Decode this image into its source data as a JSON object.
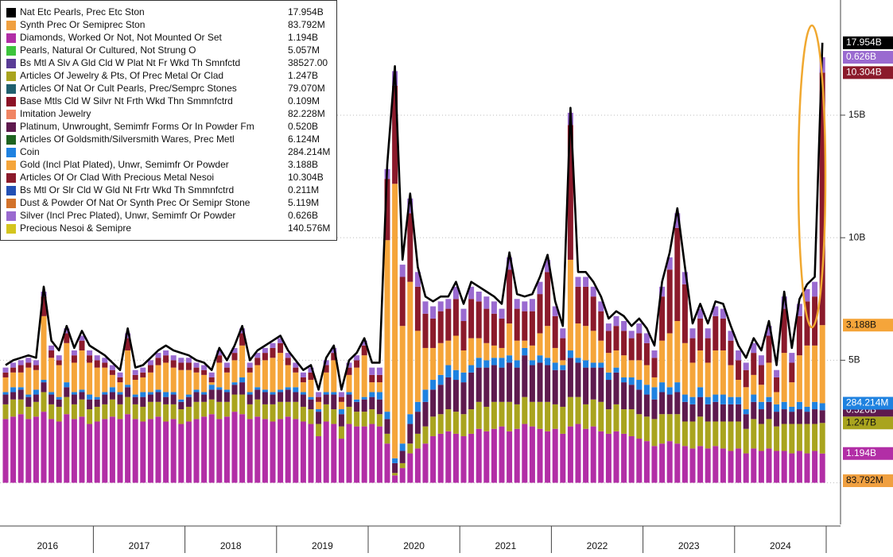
{
  "chart_data": {
    "type": "stacked_bar",
    "years": [
      "2016",
      "2017",
      "2018",
      "2019",
      "2020",
      "2021",
      "2022",
      "2023",
      "2024"
    ],
    "ylim": [
      -1.7,
      19.7
    ],
    "yticks": [
      {
        "value": 5,
        "label": "5B"
      },
      {
        "value": 10,
        "label": "10B"
      },
      {
        "value": 15,
        "label": "15B"
      }
    ],
    "grid": true,
    "legend": "top-left",
    "series": [
      {
        "name": "Nat Etc Pearls, Prec Etc Ston",
        "color": "#000000",
        "style": "line",
        "axis_tag": true,
        "value_label": "17.954B",
        "values": [
          4.8,
          5.0,
          5.1,
          5.2,
          5.1,
          8.0,
          5.8,
          5.4,
          6.4,
          5.5,
          6.2,
          5.6,
          5.4,
          5.2,
          4.9,
          4.6,
          6.3,
          4.7,
          4.8,
          5.1,
          5.4,
          5.6,
          5.4,
          5.3,
          5.2,
          5.0,
          4.9,
          4.6,
          5.5,
          5.0,
          5.6,
          6.4,
          5.0,
          5.4,
          5.6,
          5.8,
          6.0,
          5.4,
          5.0,
          4.6,
          4.8,
          3.8,
          5.1,
          5.6,
          3.8,
          5.0,
          5.3,
          5.9,
          4.9,
          4.9,
          13.0,
          17.0,
          9.1,
          11.8,
          8.8,
          7.6,
          7.4,
          7.6,
          7.6,
          8.2,
          7.3,
          8.2,
          8.0,
          7.8,
          7.6,
          7.3,
          9.4,
          7.7,
          7.6,
          7.7,
          8.4,
          9.3,
          7.4,
          6.4,
          15.3,
          8.6,
          8.6,
          8.2,
          7.6,
          6.7,
          7.0,
          6.8,
          6.4,
          6.7,
          6.3,
          5.6,
          8.2,
          9.4,
          11.2,
          8.8,
          6.5,
          7.3,
          6.5,
          7.4,
          7.3,
          6.4,
          5.6,
          5.1,
          5.9,
          5.4,
          6.6,
          4.8,
          7.8,
          5.5,
          7.5,
          8.1,
          8.4,
          17.954
        ]
      },
      {
        "name": "Synth Prec Or Semiprec Ston",
        "color": "#f0a040",
        "axis_tag": true,
        "value_label": "83.792M",
        "last": 0.083792
      },
      {
        "name": "Diamonds, Worked Or Not, Not Mounted Or Set",
        "color": "#b22ea6",
        "axis_tag": true,
        "value_label": "1.194B",
        "values": [
          2.6,
          2.7,
          2.8,
          2.6,
          2.7,
          2.9,
          2.6,
          2.5,
          2.8,
          2.6,
          2.7,
          2.4,
          2.5,
          2.6,
          2.7,
          2.6,
          2.8,
          2.6,
          2.5,
          2.6,
          2.7,
          2.5,
          2.6,
          2.4,
          2.5,
          2.6,
          2.7,
          2.8,
          2.6,
          2.7,
          2.9,
          2.8,
          2.6,
          2.7,
          2.6,
          2.5,
          2.6,
          2.7,
          2.6,
          2.5,
          2.4,
          1.9,
          2.5,
          2.4,
          1.8,
          2.4,
          2.3,
          2.3,
          2.4,
          2.3,
          1.6,
          0.3,
          0.6,
          1.2,
          1.4,
          1.6,
          1.9,
          2.0,
          2.1,
          2.0,
          1.9,
          2.0,
          2.2,
          2.1,
          2.2,
          2.3,
          2.1,
          2.2,
          2.4,
          2.3,
          2.2,
          2.1,
          2.2,
          2.0,
          2.3,
          2.4,
          2.2,
          2.3,
          2.1,
          2.0,
          2.1,
          2.0,
          1.9,
          1.8,
          1.7,
          1.5,
          1.6,
          1.7,
          1.6,
          1.5,
          1.4,
          1.5,
          1.4,
          1.5,
          1.4,
          1.3,
          1.4,
          1.2,
          1.4,
          1.3,
          1.4,
          1.3,
          1.3,
          1.2,
          1.3,
          1.2,
          1.3,
          1.194
        ]
      },
      {
        "name": "Pearls, Natural Or Cultured, Not Strung O",
        "color": "#3cc43c",
        "value_label": "5.057M",
        "last": 0.005057
      },
      {
        "name": "Bs Mtl A Slv A Gld Cld W Plat Nt Fr Wkd Th Smnfctd",
        "color": "#5a3c96",
        "value_label": "38527.00",
        "last": 38527
      },
      {
        "name": "Articles Of Jewelry & Pts, Of Prec Metal Or Clad",
        "color": "#a9a41e",
        "axis_tag": true,
        "value_label": "1.247B",
        "values": [
          0.6,
          0.7,
          0.6,
          0.5,
          0.6,
          0.8,
          0.6,
          0.6,
          0.7,
          0.6,
          0.7,
          0.6,
          0.6,
          0.6,
          0.7,
          0.6,
          0.7,
          0.6,
          0.6,
          0.7,
          0.6,
          0.7,
          0.6,
          0.6,
          0.6,
          0.7,
          0.6,
          0.6,
          0.7,
          0.6,
          0.7,
          0.8,
          0.6,
          0.7,
          0.6,
          0.7,
          0.7,
          0.6,
          0.7,
          0.6,
          0.6,
          0.5,
          0.7,
          0.6,
          0.5,
          0.7,
          0.6,
          0.6,
          0.6,
          0.5,
          0.4,
          0.1,
          0.2,
          0.4,
          0.6,
          0.7,
          0.8,
          0.8,
          0.9,
          0.9,
          0.9,
          1.0,
          1.1,
          1.0,
          1.1,
          1.0,
          1.2,
          1.0,
          1.1,
          1.0,
          1.1,
          1.2,
          1.0,
          1.1,
          1.2,
          1.1,
          1.0,
          1.1,
          1.2,
          1.0,
          1.1,
          1.0,
          1.1,
          1.0,
          1.0,
          1.1,
          1.2,
          1.1,
          1.2,
          1.0,
          1.1,
          1.2,
          1.1,
          1.0,
          1.1,
          1.2,
          1.1,
          1.0,
          1.2,
          1.1,
          1.2,
          1.0,
          1.1,
          1.2,
          1.1,
          1.2,
          1.1,
          1.247
        ]
      },
      {
        "name": "Articles Of Nat Or Cult Pearls, Prec/Semprc Stones",
        "color": "#1f5f6e",
        "value_label": "79.070M",
        "last": 0.07907
      },
      {
        "name": "Base Mtls Cld W Silvr Nt Frth Wkd Thn Smmnfctrd",
        "color": "#8c1226",
        "value_label": "0.109M",
        "last": 0.000109
      },
      {
        "name": "Imitation Jewelry",
        "color": "#f08462",
        "value_label": "82.228M",
        "last": 0.082228
      },
      {
        "name": "Platinum, Unwrought, Semimfr Forms Or In Powder Fm",
        "color": "#5e1a4e",
        "axis_tag": true,
        "value_label": "0.520B",
        "values": [
          0.4,
          0.3,
          0.4,
          0.4,
          0.3,
          0.4,
          0.4,
          0.3,
          0.4,
          0.4,
          0.3,
          0.4,
          0.3,
          0.4,
          0.3,
          0.4,
          0.4,
          0.3,
          0.4,
          0.3,
          0.4,
          0.3,
          0.4,
          0.3,
          0.4,
          0.4,
          0.3,
          0.4,
          0.5,
          0.4,
          0.4,
          0.5,
          0.4,
          0.4,
          0.5,
          0.4,
          0.4,
          0.5,
          0.4,
          0.5,
          0.4,
          0.5,
          0.4,
          0.6,
          0.5,
          0.5,
          0.4,
          0.5,
          0.5,
          0.6,
          0.6,
          0.4,
          0.5,
          0.8,
          0.9,
          1.0,
          1.1,
          1.2,
          1.3,
          1.3,
          1.3,
          1.5,
          1.4,
          1.6,
          1.5,
          1.4,
          1.6,
          1.5,
          1.7,
          1.5,
          1.6,
          1.5,
          1.4,
          1.5,
          1.6,
          1.4,
          1.5,
          1.3,
          1.4,
          1.2,
          1.3,
          1.1,
          1.0,
          1.0,
          0.9,
          0.8,
          0.9,
          0.8,
          0.9,
          0.8,
          0.7,
          0.8,
          0.7,
          0.8,
          0.7,
          0.7,
          0.7,
          0.6,
          0.7,
          0.6,
          0.7,
          0.6,
          0.6,
          0.5,
          0.6,
          0.5,
          0.6,
          0.52
        ]
      },
      {
        "name": "Articles Of Goldsmith/Silversmith Wares, Prec Metl",
        "color": "#1e6420",
        "value_label": "6.124M",
        "last": 0.006124
      },
      {
        "name": "Coin",
        "color": "#1f82e0",
        "axis_tag": true,
        "value_label": "284.214M",
        "values": [
          0.1,
          0.2,
          0.1,
          0.1,
          0.2,
          0.1,
          0.1,
          0.1,
          0.2,
          0.1,
          0.1,
          0.2,
          0.1,
          0.1,
          0.2,
          0.1,
          0.1,
          0.1,
          0.2,
          0.1,
          0.1,
          0.2,
          0.1,
          0.1,
          0.1,
          0.1,
          0.1,
          0.2,
          0.1,
          0.1,
          0.1,
          0.2,
          0.1,
          0.1,
          0.1,
          0.1,
          0.1,
          0.1,
          0.2,
          0.1,
          0.1,
          0.1,
          0.1,
          0.1,
          0.2,
          0.1,
          0.1,
          0.1,
          0.2,
          0.3,
          0.3,
          0.2,
          0.3,
          0.4,
          0.4,
          0.5,
          0.4,
          0.4,
          0.5,
          0.4,
          0.4,
          0.3,
          0.4,
          0.3,
          0.3,
          0.4,
          0.3,
          0.3,
          0.3,
          0.2,
          0.3,
          0.3,
          0.3,
          0.2,
          0.3,
          0.2,
          0.3,
          0.2,
          0.2,
          0.3,
          0.2,
          0.2,
          0.3,
          0.4,
          0.4,
          0.5,
          0.4,
          0.3,
          0.4,
          0.3,
          0.3,
          0.4,
          0.3,
          0.3,
          0.4,
          0.3,
          0.3,
          0.2,
          0.3,
          0.3,
          0.2,
          0.3,
          0.3,
          0.2,
          0.3,
          0.2,
          0.3,
          0.284214
        ]
      },
      {
        "name": "Gold (Incl Plat Plated), Unwr, Semimfr Or Powder",
        "color": "#f5a53a",
        "axis_tag": true,
        "value_label": "3.188B",
        "values": [
          0.6,
          0.6,
          0.6,
          1.1,
          0.8,
          2.6,
          1.4,
          1.3,
          1.6,
          1.2,
          1.6,
          1.3,
          1.2,
          1.0,
          0.5,
          0.4,
          1.4,
          0.6,
          0.6,
          0.8,
          1.0,
          1.2,
          1.0,
          1.2,
          1.0,
          0.7,
          0.7,
          0.1,
          1.0,
          0.7,
          0.9,
          1.3,
          0.8,
          0.9,
          1.2,
          1.4,
          1.5,
          0.9,
          0.6,
          0.4,
          0.7,
          0.3,
          0.8,
          1.3,
          0.3,
          0.7,
          1.3,
          1.7,
          0.4,
          0.4,
          7.0,
          11.2,
          4.8,
          5.4,
          2.9,
          1.7,
          1.3,
          1.3,
          1.0,
          1.4,
          0.9,
          1.1,
          0.8,
          0.7,
          0.5,
          0.4,
          1.3,
          0.8,
          0.3,
          0.6,
          0.9,
          1.3,
          0.6,
          0.2,
          3.7,
          1.4,
          1.4,
          1.3,
          0.9,
          0.8,
          0.7,
          0.9,
          0.7,
          0.8,
          0.8,
          0.4,
          1.7,
          2.2,
          2.5,
          2.1,
          1.4,
          1.5,
          1.4,
          1.8,
          1.8,
          1.3,
          0.7,
          0.9,
          0.8,
          0.7,
          1.4,
          0.5,
          2.0,
          1.0,
          1.9,
          2.5,
          2.3,
          3.188
        ]
      },
      {
        "name": "Articles Of Or Clad With Precious Metal Nesoi",
        "color": "#8b1a2b",
        "axis_tag": true,
        "value_label": "10.304B",
        "values": [
          0.2,
          0.2,
          0.3,
          0.2,
          0.2,
          0.8,
          0.3,
          0.2,
          0.4,
          0.3,
          0.4,
          0.3,
          0.3,
          0.2,
          0.2,
          0.2,
          0.5,
          0.2,
          0.2,
          0.3,
          0.3,
          0.3,
          0.3,
          0.3,
          0.3,
          0.2,
          0.2,
          0.2,
          0.3,
          0.2,
          0.3,
          0.5,
          0.2,
          0.3,
          0.3,
          0.4,
          0.4,
          0.3,
          0.2,
          0.2,
          0.3,
          0.2,
          0.3,
          0.3,
          0.2,
          0.3,
          0.3,
          0.4,
          0.3,
          0.3,
          2.5,
          4.0,
          2.0,
          2.8,
          1.8,
          1.4,
          1.2,
          1.3,
          1.3,
          1.5,
          1.2,
          1.6,
          1.5,
          1.4,
          1.3,
          1.2,
          2.2,
          1.3,
          1.2,
          1.4,
          1.6,
          2.2,
          1.3,
          0.9,
          5.5,
          1.5,
          1.6,
          1.4,
          1.2,
          0.9,
          1.0,
          1.0,
          0.9,
          1.1,
          0.9,
          0.8,
          1.8,
          2.6,
          3.8,
          2.4,
          1.0,
          1.3,
          1.0,
          1.4,
          1.3,
          1.0,
          0.8,
          0.7,
          0.9,
          0.8,
          1.1,
          0.6,
          1.8,
          0.8,
          1.6,
          1.8,
          2.0,
          10.304
        ]
      },
      {
        "name": "Bs Mtl Or Slr Cld W Gld Nt Frtr Wkd Th Smmnfctrd",
        "color": "#2350b4",
        "value_label": "0.211M",
        "last": 0.000211
      },
      {
        "name": "Dust & Powder Of Nat Or Synth Prec Or Semipr Stone",
        "color": "#d2722a",
        "value_label": "5.119M",
        "last": 0.005119
      },
      {
        "name": "Silver (Incl Prec Plated), Unwr, Semimfr Or Powder",
        "color": "#9a6ad0",
        "axis_tag": true,
        "value_label": "0.626B",
        "values": [
          0.2,
          0.2,
          0.2,
          0.2,
          0.2,
          0.2,
          0.2,
          0.2,
          0.2,
          0.2,
          0.2,
          0.2,
          0.2,
          0.2,
          0.2,
          0.2,
          0.2,
          0.2,
          0.2,
          0.2,
          0.2,
          0.2,
          0.2,
          0.2,
          0.2,
          0.2,
          0.2,
          0.2,
          0.2,
          0.2,
          0.2,
          0.2,
          0.2,
          0.2,
          0.2,
          0.2,
          0.2,
          0.2,
          0.2,
          0.2,
          0.2,
          0.2,
          0.2,
          0.2,
          0.2,
          0.2,
          0.2,
          0.2,
          0.3,
          0.3,
          0.4,
          0.6,
          0.5,
          0.6,
          0.6,
          0.5,
          0.5,
          0.4,
          0.4,
          0.5,
          0.5,
          0.5,
          0.4,
          0.5,
          0.5,
          0.4,
          0.5,
          0.4,
          0.4,
          0.5,
          0.5,
          0.5,
          0.4,
          0.4,
          0.5,
          0.4,
          0.4,
          0.4,
          0.4,
          0.3,
          0.4,
          0.4,
          0.3,
          0.4,
          0.4,
          0.3,
          0.4,
          0.5,
          0.6,
          0.5,
          0.4,
          0.4,
          0.4,
          0.4,
          0.4,
          0.4,
          0.4,
          0.3,
          0.4,
          0.4,
          0.4,
          0.3,
          0.5,
          0.4,
          0.5,
          0.5,
          0.6,
          0.626
        ]
      },
      {
        "name": "Precious Nesoi & Semipre",
        "color": "#d4c51e",
        "value_label": "140.576M",
        "last": 0.140576
      }
    ]
  }
}
